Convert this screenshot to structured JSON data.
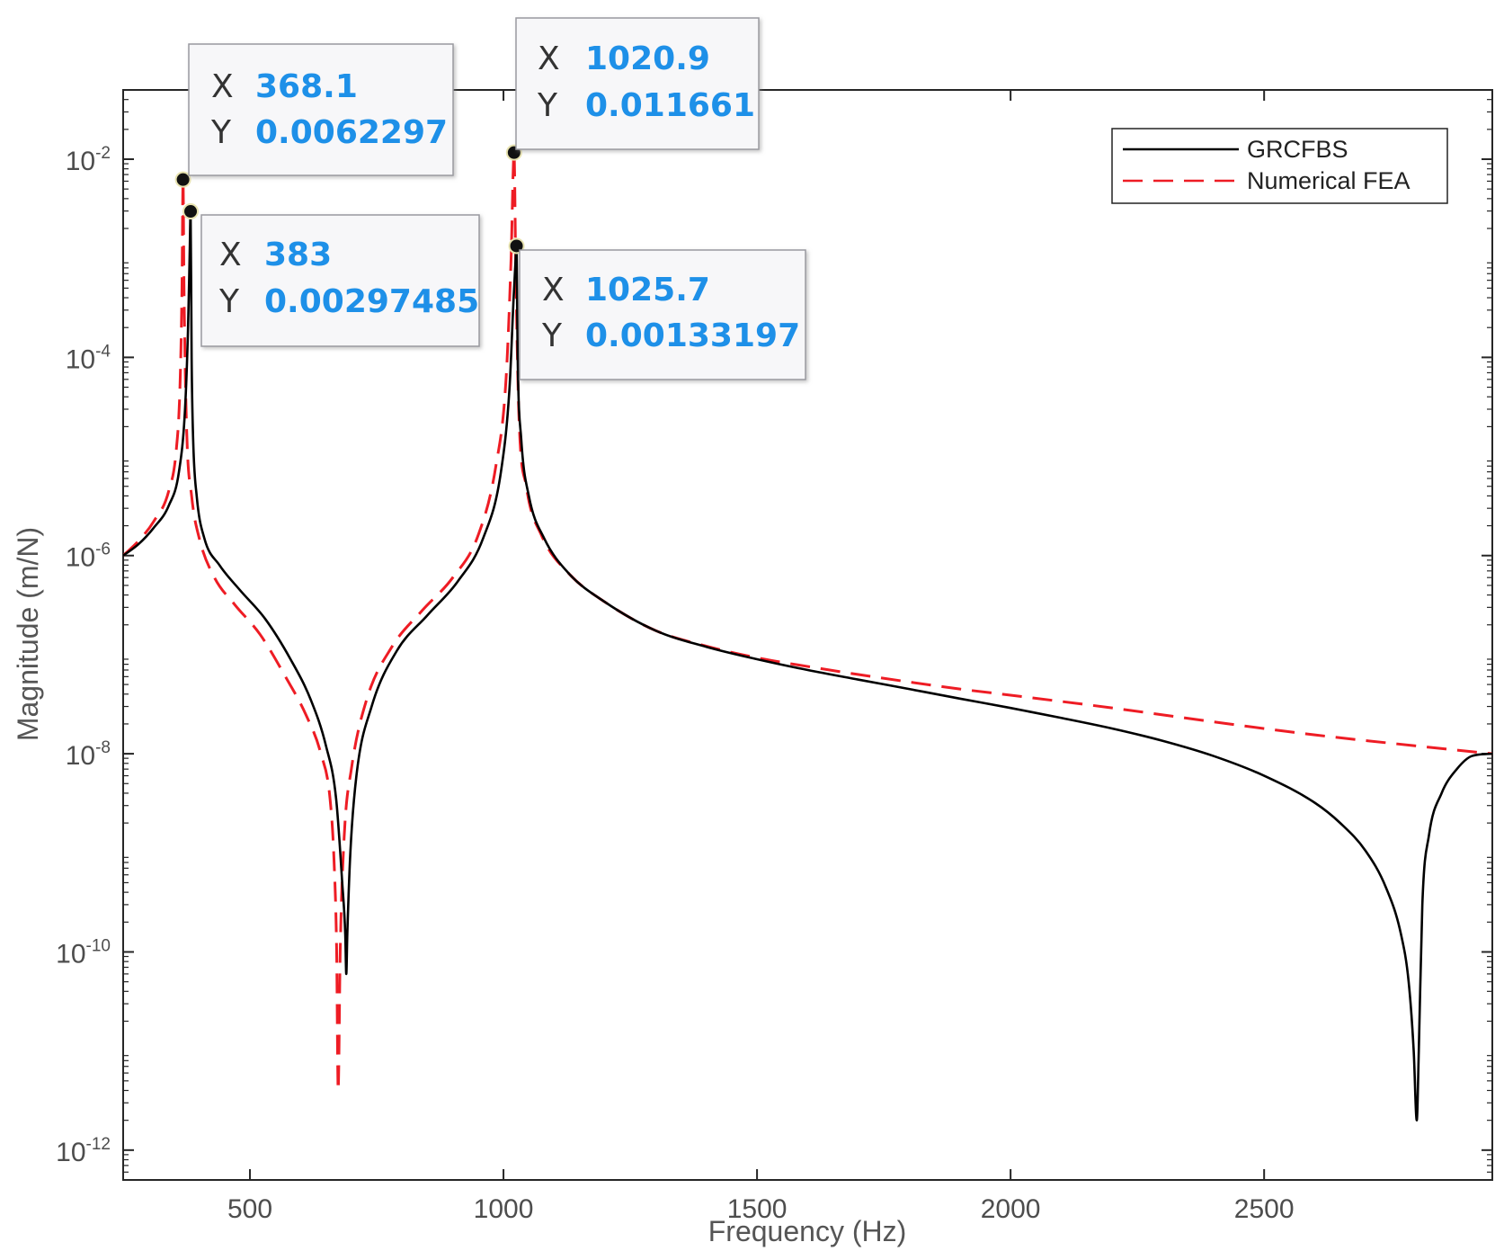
{
  "chart_data": {
    "type": "line",
    "title": "",
    "xlabel": "Frequency (Hz)",
    "ylabel": "Magnitude (m/N)",
    "xlim": [
      250,
      2950
    ],
    "ylim": [
      5e-13,
      0.05
    ],
    "yscale": "log",
    "grid": false,
    "legend_position": "top-right",
    "xticks": [
      {
        "value": 500,
        "label": "500"
      },
      {
        "value": 1000,
        "label": "1000"
      },
      {
        "value": 1500,
        "label": "1500"
      },
      {
        "value": 2000,
        "label": "2000"
      },
      {
        "value": 2500,
        "label": "2500"
      }
    ],
    "yticks": [
      {
        "value": 1e-12,
        "base": "10",
        "exp": "-12"
      },
      {
        "value": 1e-10,
        "base": "10",
        "exp": "-10"
      },
      {
        "value": 1e-08,
        "base": "10",
        "exp": "-8"
      },
      {
        "value": 1e-06,
        "base": "10",
        "exp": "-6"
      },
      {
        "value": 0.0001,
        "base": "10",
        "exp": "-4"
      },
      {
        "value": 0.01,
        "base": "10",
        "exp": "-2"
      }
    ],
    "series": [
      {
        "name": "GRCFBS",
        "color": "#000000",
        "style": "solid",
        "x": [
          250,
          280,
          310,
          340,
          360,
          372,
          378,
          381,
          383,
          385,
          388,
          395,
          410,
          440,
          480,
          530,
          580,
          620,
          650,
          670,
          682,
          688,
          690,
          692,
          698,
          710,
          740,
          790,
          850,
          910,
          960,
          995,
          1012,
          1020,
          1024,
          1025.7,
          1028,
          1035,
          1050,
          1080,
          1130,
          1200,
          1300,
          1400,
          1500,
          1600,
          1700,
          1800,
          1900,
          2000,
          2100,
          2200,
          2300,
          2400,
          2500,
          2600,
          2650,
          2700,
          2740,
          2770,
          2785,
          2795,
          2801,
          2805,
          2812,
          2825,
          2850,
          2880,
          2910,
          2950
        ],
        "y": [
          1e-06,
          1.3e-06,
          1.9e-06,
          3.2e-06,
          7e-06,
          3e-05,
          0.0002,
          0.001,
          0.00297485,
          0.0001,
          1.5e-05,
          4e-06,
          1.5e-06,
          8e-07,
          4.5e-07,
          2.3e-07,
          9e-08,
          3.5e-08,
          1.2e-08,
          3.5e-09,
          5e-10,
          1.5e-10,
          6e-11,
          1.5e-10,
          1e-09,
          6e-09,
          3e-08,
          1.1e-07,
          2.5e-07,
          5.5e-07,
          1.5e-06,
          7e-06,
          5e-05,
          0.0004,
          0.001,
          0.00133197,
          0.0001,
          1.5e-05,
          4e-06,
          1.5e-06,
          6.5e-07,
          3.4e-07,
          1.75e-07,
          1.2e-07,
          9e-08,
          7e-08,
          5.6e-08,
          4.5e-08,
          3.6e-08,
          2.9e-08,
          2.3e-08,
          1.8e-08,
          1.35e-08,
          9.5e-09,
          6e-09,
          3.2e-09,
          2e-09,
          1.05e-09,
          4.5e-10,
          1.5e-10,
          5e-11,
          1e-11,
          2e-12,
          1e-11,
          3e-10,
          1.5e-09,
          4e-09,
          7e-09,
          9.5e-09,
          1e-08
        ]
      },
      {
        "name": "Numerical FEA",
        "color": "#ee1c24",
        "style": "dashed",
        "x": [
          250,
          280,
          310,
          340,
          355,
          362,
          366,
          368.1,
          370,
          375,
          385,
          400,
          430,
          470,
          520,
          570,
          610,
          640,
          658,
          666,
          671,
          674,
          678,
          686,
          700,
          730,
          780,
          840,
          900,
          950,
          985,
          1005,
          1015,
          1020.9,
          1024,
          1030,
          1045,
          1075,
          1130,
          1200,
          1300,
          1400,
          1500,
          1600,
          1700,
          1800,
          1900,
          2000,
          2200,
          2400,
          2600,
          2800,
          2950
        ],
        "y": [
          1e-06,
          1.4e-06,
          2.2e-06,
          4.5e-06,
          1.2e-05,
          5e-05,
          0.0005,
          0.0062297,
          0.0005,
          2e-05,
          4e-06,
          1.5e-06,
          6e-07,
          3.2e-07,
          1.6e-07,
          6e-08,
          2.5e-08,
          1e-08,
          3.5e-09,
          8e-10,
          1e-10,
          4e-12,
          1e-10,
          1.5e-09,
          7e-09,
          3.5e-08,
          1.2e-07,
          2.8e-07,
          6e-07,
          1.6e-06,
          8e-06,
          6e-05,
          0.001,
          0.011661,
          0.001,
          3e-05,
          5e-06,
          1.6e-06,
          6.5e-07,
          3.4e-07,
          1.75e-07,
          1.22e-07,
          9.3e-08,
          7.6e-08,
          6.3e-08,
          5.3e-08,
          4.5e-08,
          3.9e-08,
          2.9e-08,
          2.1e-08,
          1.55e-08,
          1.2e-08,
          1e-08
        ]
      }
    ],
    "datatips": [
      {
        "x_letter": "X",
        "y_letter": "Y",
        "x": "368.1",
        "y": "0.0062297",
        "xv": 368.1,
        "yv": 0.0062297
      },
      {
        "x_letter": "X",
        "y_letter": "Y",
        "x": "383",
        "y": "0.00297485",
        "xv": 383,
        "yv": 0.00297485
      },
      {
        "x_letter": "X",
        "y_letter": "Y",
        "x": "1020.9",
        "y": "0.011661",
        "xv": 1020.9,
        "yv": 0.011661
      },
      {
        "x_letter": "X",
        "y_letter": "Y",
        "x": "1025.7",
        "y": "0.00133197",
        "xv": 1025.7,
        "yv": 0.00133197
      }
    ]
  }
}
